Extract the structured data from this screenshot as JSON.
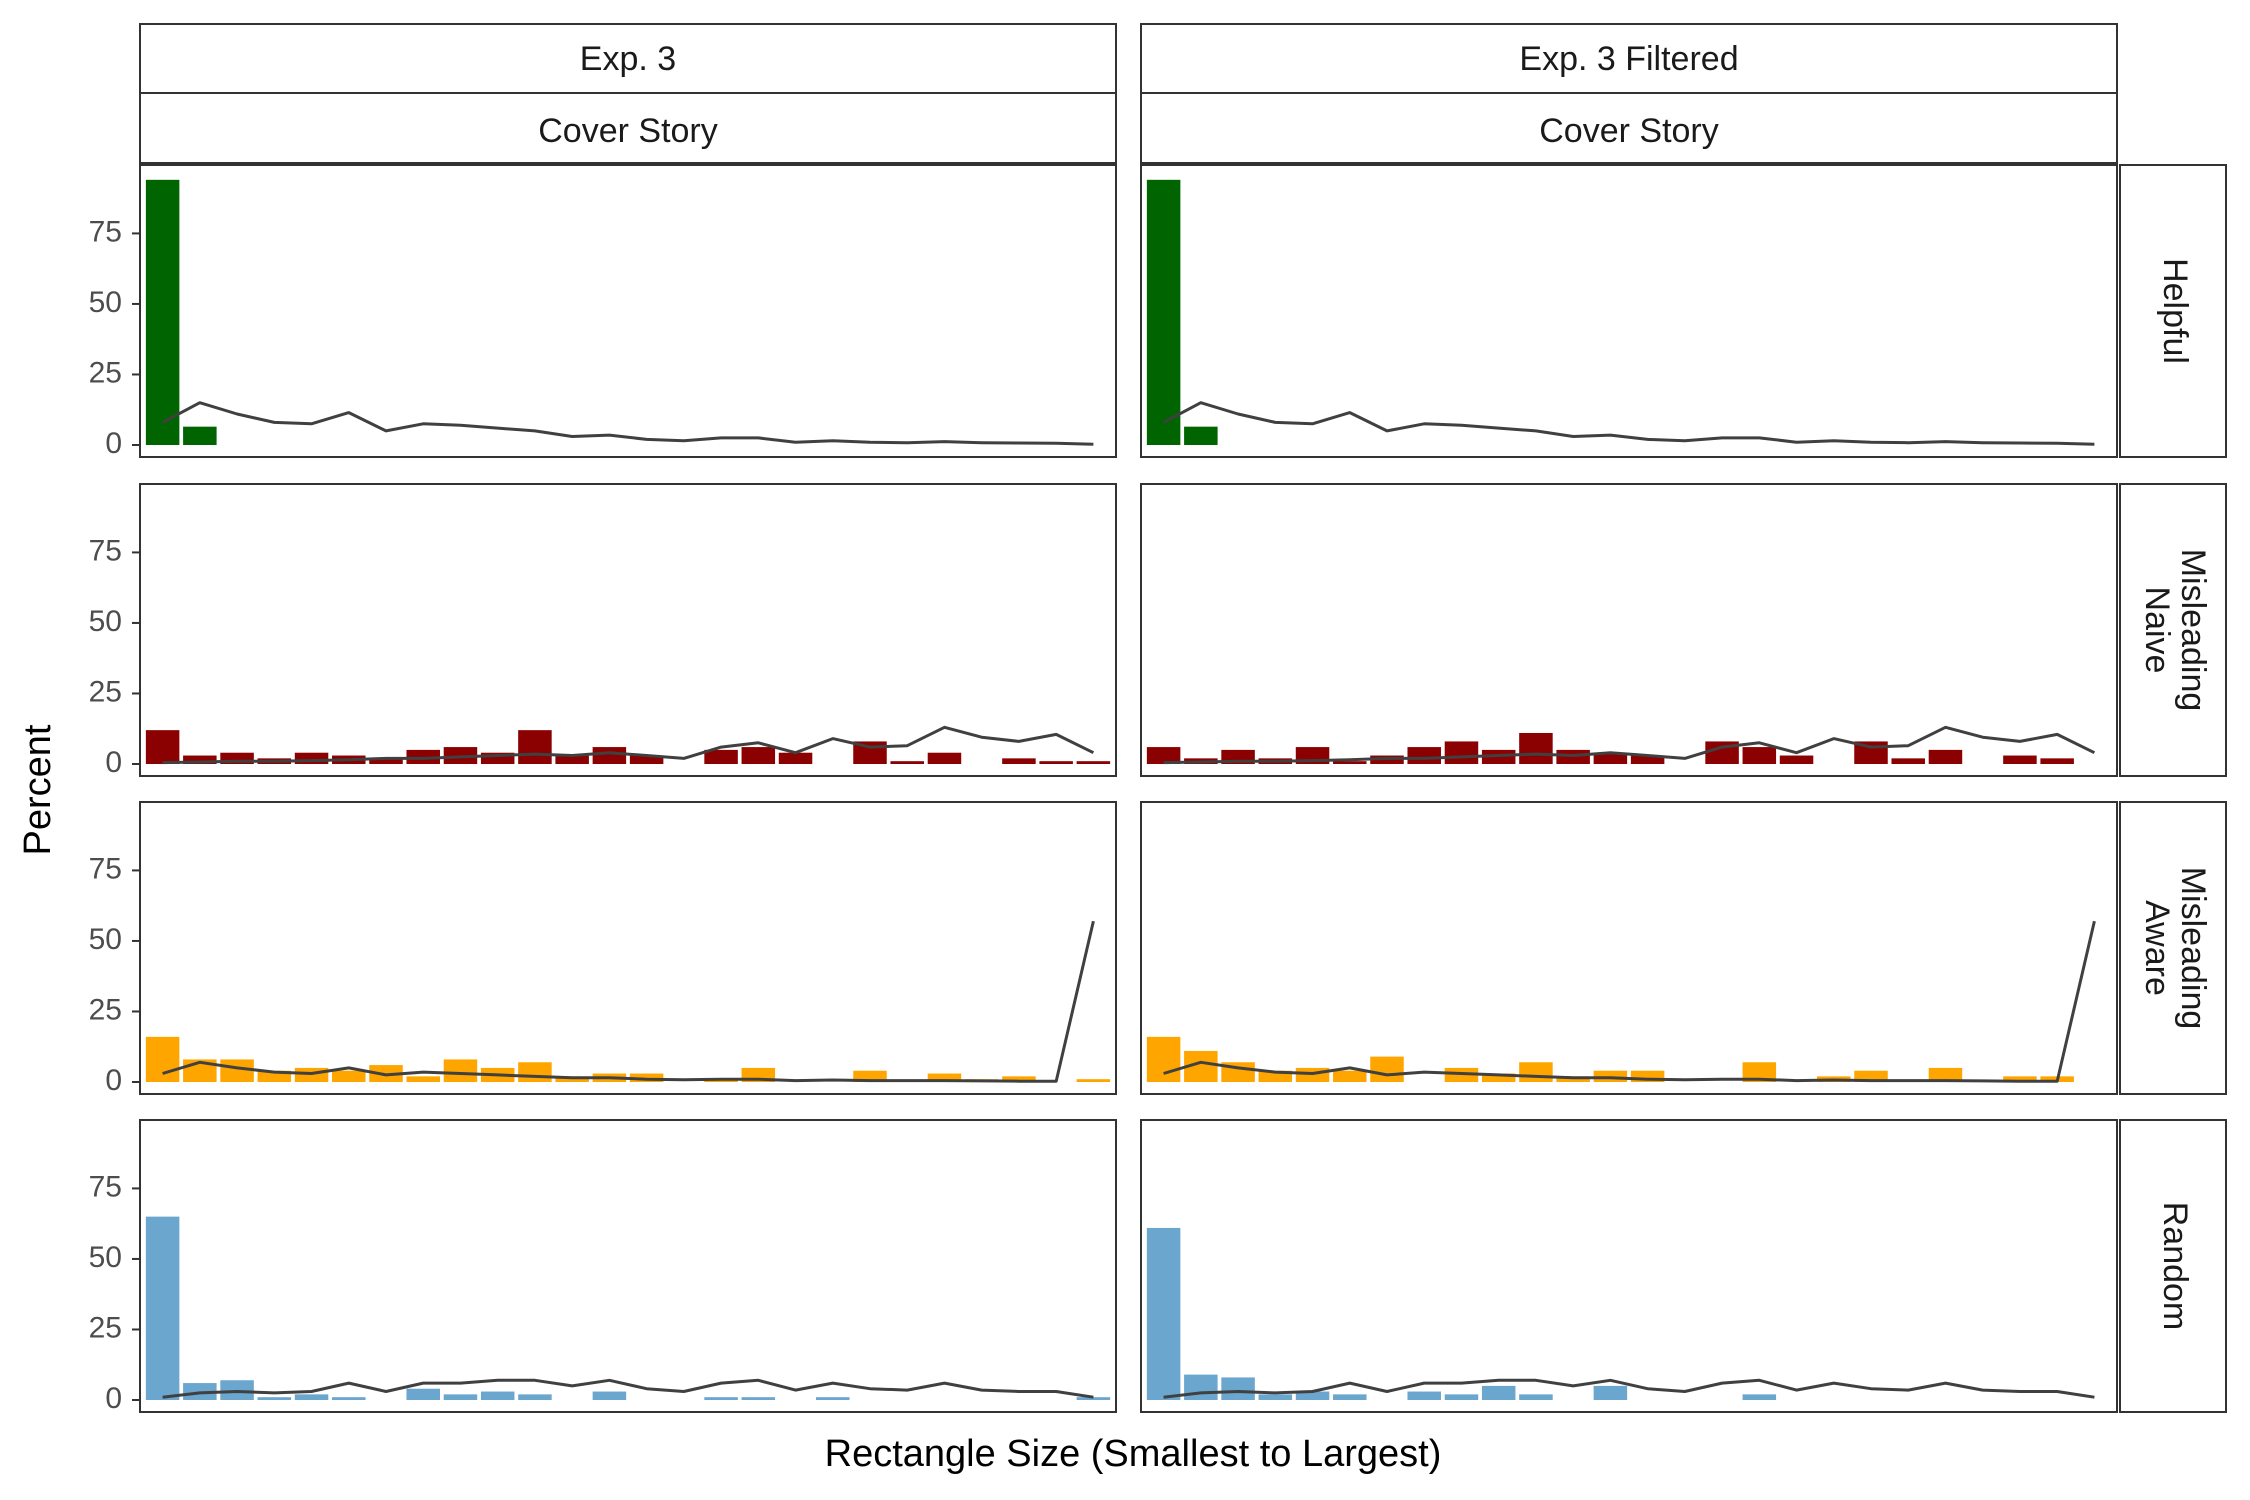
{
  "chart_data": {
    "type": "bar",
    "ylabel": "Percent",
    "xlabel": "Rectangle Size (Smallest to Largest)",
    "ylim": [
      0,
      95
    ],
    "yticks": [
      0,
      25,
      50,
      75
    ],
    "n_categories": 26,
    "columns": [
      {
        "title": "Exp. 3",
        "subtitle": "Cover Story"
      },
      {
        "title": "Exp. 3 Filtered",
        "subtitle": "Cover Story"
      }
    ],
    "rows": [
      {
        "label_lines": [
          "Helpful"
        ],
        "color": "#006400"
      },
      {
        "label_lines": [
          "Misleading",
          "Naive"
        ],
        "color": "#8B0000"
      },
      {
        "label_lines": [
          "Misleading",
          "Aware"
        ],
        "color": "#FFA500"
      },
      {
        "label_lines": [
          "Random"
        ],
        "color": "#6BA6CF"
      }
    ],
    "line_color": "#404040",
    "panels": [
      {
        "row": 0,
        "col": 0,
        "bars": [
          94,
          6.5,
          0,
          0,
          0,
          0,
          0,
          0,
          0,
          0,
          0,
          0,
          0,
          0,
          0,
          0,
          0,
          0,
          0,
          0,
          0,
          0,
          0,
          0,
          0,
          0
        ],
        "line": [
          8,
          15,
          11,
          8,
          7.5,
          11.5,
          5,
          7.5,
          7,
          6,
          5,
          3,
          3.5,
          2,
          1.5,
          2.5,
          2.5,
          1,
          1.5,
          1,
          0.8,
          1.2,
          0.8,
          0.7,
          0.6,
          0.3
        ]
      },
      {
        "row": 0,
        "col": 1,
        "bars": [
          94,
          6.5,
          0,
          0,
          0,
          0,
          0,
          0,
          0,
          0,
          0,
          0,
          0,
          0,
          0,
          0,
          0,
          0,
          0,
          0,
          0,
          0,
          0,
          0,
          0,
          0
        ],
        "line": [
          8,
          15,
          11,
          8,
          7.5,
          11.5,
          5,
          7.5,
          7,
          6,
          5,
          3,
          3.5,
          2,
          1.5,
          2.5,
          2.5,
          1,
          1.5,
          1,
          0.8,
          1.2,
          0.8,
          0.7,
          0.6,
          0.3
        ]
      },
      {
        "row": 1,
        "col": 0,
        "bars": [
          12,
          3,
          4,
          2,
          4,
          3,
          2,
          5,
          6,
          4,
          12,
          3,
          6,
          3,
          0,
          5,
          6,
          4,
          0,
          8,
          1,
          4,
          0,
          2,
          1,
          1
        ],
        "line": [
          0.5,
          0.7,
          1,
          1,
          1.2,
          1.5,
          2,
          2,
          2.5,
          3,
          3.5,
          3,
          4,
          3,
          2,
          6,
          7.5,
          4,
          9,
          6,
          6.5,
          13,
          9.5,
          8,
          10.5,
          4
        ]
      },
      {
        "row": 1,
        "col": 1,
        "bars": [
          6,
          2,
          5,
          2,
          6,
          1,
          3,
          6,
          8,
          5,
          11,
          5,
          4,
          3,
          0,
          8,
          6,
          3,
          0,
          8,
          2,
          5,
          0,
          3,
          2,
          0
        ],
        "line": [
          0.5,
          0.7,
          1,
          1,
          1.2,
          1.5,
          2,
          2,
          2.5,
          3,
          3.5,
          3,
          4,
          3,
          2,
          6,
          7.5,
          4,
          9,
          6,
          6.5,
          13,
          9.5,
          8,
          10.5,
          4
        ]
      },
      {
        "row": 2,
        "col": 0,
        "bars": [
          16,
          8,
          8,
          4,
          5,
          4,
          6,
          2,
          8,
          5,
          7,
          2,
          3,
          3,
          0,
          1,
          5,
          0,
          0,
          4,
          0,
          3,
          1,
          2,
          0,
          1
        ],
        "line": [
          3,
          7,
          5,
          3.5,
          3,
          5,
          2.5,
          3.5,
          3,
          2.5,
          2,
          1.5,
          1.5,
          1,
          0.8,
          1,
          1,
          0.5,
          0.7,
          0.5,
          0.5,
          0.5,
          0.4,
          0.3,
          0.3,
          57
        ]
      },
      {
        "row": 2,
        "col": 1,
        "bars": [
          16,
          11,
          7,
          4,
          5,
          4,
          9,
          0,
          5,
          3,
          7,
          2,
          4,
          4,
          0,
          0,
          7,
          0,
          2,
          4,
          0,
          5,
          0,
          2,
          2,
          0
        ],
        "line": [
          3,
          7,
          5,
          3.5,
          3,
          5,
          2.5,
          3.5,
          3,
          2.5,
          2,
          1.5,
          1.5,
          1,
          0.8,
          1,
          1,
          0.5,
          0.7,
          0.5,
          0.5,
          0.5,
          0.4,
          0.3,
          0.3,
          57
        ]
      },
      {
        "row": 3,
        "col": 0,
        "bars": [
          65,
          6,
          7,
          1,
          2,
          1,
          0,
          4,
          2,
          3,
          2,
          0,
          3,
          0,
          0,
          1,
          1,
          0,
          1,
          0,
          0,
          0,
          0,
          0,
          0,
          1
        ],
        "line": [
          1,
          2.5,
          3,
          2.5,
          3,
          6,
          3,
          6,
          6,
          7,
          7,
          5,
          7,
          4,
          3,
          6,
          7,
          3.5,
          6,
          4,
          3.5,
          6,
          3.5,
          3,
          3,
          1
        ]
      },
      {
        "row": 3,
        "col": 1,
        "bars": [
          61,
          9,
          8,
          2,
          3,
          2,
          0,
          3,
          2,
          5,
          2,
          0,
          5,
          0,
          0,
          0,
          2,
          0,
          0,
          0,
          0,
          0,
          0,
          0,
          0,
          0
        ],
        "line": [
          1,
          2.5,
          3,
          2.5,
          3,
          6,
          3,
          6,
          6,
          7,
          7,
          5,
          7,
          4,
          3,
          6,
          7,
          3.5,
          6,
          4,
          3.5,
          6,
          3.5,
          3,
          3,
          1
        ]
      }
    ]
  }
}
